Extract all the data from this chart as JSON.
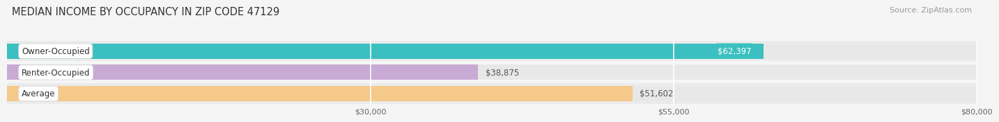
{
  "title": "MEDIAN INCOME BY OCCUPANCY IN ZIP CODE 47129",
  "source": "Source: ZipAtlas.com",
  "categories": [
    "Owner-Occupied",
    "Renter-Occupied",
    "Average"
  ],
  "values": [
    62397,
    38875,
    51602
  ],
  "bar_colors": [
    "#3bbfc0",
    "#c9aad4",
    "#f5c98a"
  ],
  "value_labels": [
    "$62,397",
    "$38,875",
    "$51,602"
  ],
  "value_label_colors": [
    "#ffffff",
    "#555555",
    "#555555"
  ],
  "value_label_bg": [
    "#3bbfc0",
    "none",
    "none"
  ],
  "xlim_min": 0,
  "xlim_max": 80000,
  "xticks": [
    30000,
    55000,
    80000
  ],
  "xtick_labels": [
    "$30,000",
    "$55,000",
    "$80,000"
  ],
  "background_color": "#f5f5f5",
  "bar_bg_color": "#e8e8e8",
  "row_bg_colors": [
    "#ebebeb",
    "#f5f5f5",
    "#ebebeb"
  ],
  "title_fontsize": 10.5,
  "source_fontsize": 8,
  "label_fontsize": 8.5,
  "value_fontsize": 8.5,
  "tick_fontsize": 8
}
